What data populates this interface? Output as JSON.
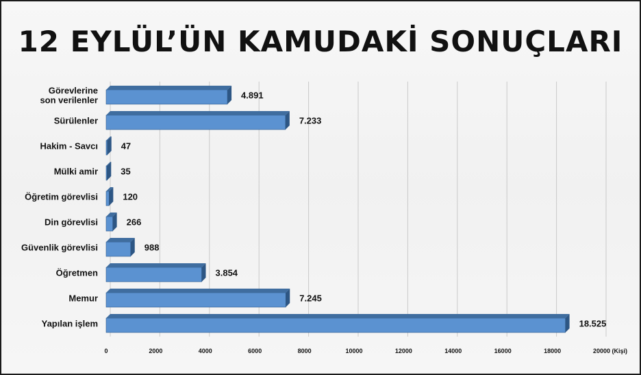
{
  "title": "12 EYLÜL’ÜN KAMUDAKİ SONUÇLARI",
  "chart_data": {
    "type": "bar",
    "orientation": "horizontal",
    "title": "12 EYLÜL’ÜN KAMUDAKİ SONUÇLARI",
    "categories": [
      [
        "Görevlerine",
        "son verilenler"
      ],
      [
        "Sürülenler"
      ],
      [
        "Hakim - Savcı"
      ],
      [
        "Mülki amir"
      ],
      [
        "Öğretim görevlisi"
      ],
      [
        "Din görevlisi"
      ],
      [
        "Güvenlik görevlisi"
      ],
      [
        "Öğretmen"
      ],
      [
        "Memur"
      ],
      [
        "Yapılan işlem"
      ]
    ],
    "values": [
      4891,
      7233,
      47,
      35,
      120,
      266,
      988,
      3854,
      7245,
      18525
    ],
    "value_labels": [
      "4.891",
      "7.233",
      "47",
      "35",
      "120",
      "266",
      "988",
      "3.854",
      "7.245",
      "18.525"
    ],
    "xlim": [
      0,
      20000
    ],
    "x_ticks": [
      0,
      2000,
      4000,
      6000,
      8000,
      10000,
      12000,
      14000,
      16000,
      18000,
      20000
    ],
    "x_tick_labels": [
      "0",
      "2000",
      "4000",
      "6000",
      "8000",
      "10000",
      "12000",
      "14000",
      "16000",
      "18000",
      "20000 (Kişi)"
    ],
    "bar_color": "#5b92d1",
    "bar_top_color": "#3f6d9f",
    "bar_side_color": "#2d5684",
    "grid": true
  }
}
